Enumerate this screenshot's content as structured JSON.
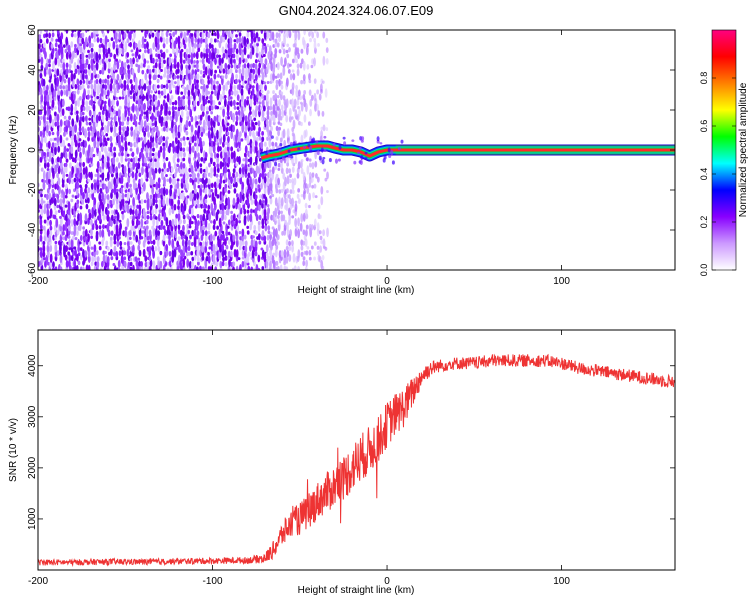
{
  "title": "GN04.2024.324.06.07.E09",
  "chart_data": [
    {
      "type": "heatmap",
      "xlabel": "Height of straight line (km)",
      "ylabel": "Frequency (Hz)",
      "xlim": [
        -200,
        165
      ],
      "ylim": [
        -60,
        60
      ],
      "xticks": [
        -200,
        -100,
        0,
        100
      ],
      "yticks": [
        -60,
        -40,
        -20,
        0,
        20,
        40,
        60
      ],
      "colorbar": {
        "label": "Normalized spectral amplitude",
        "range": [
          0,
          1
        ],
        "ticks": [
          0.0,
          0.2,
          0.4,
          0.6,
          0.8
        ],
        "colors": [
          "#ffffff",
          "#cc99ff",
          "#8800ff",
          "#0000ff",
          "#00ffff",
          "#00ff00",
          "#ffff00",
          "#ff8000",
          "#ff0000",
          "#ff0080"
        ]
      },
      "noise_region": [
        -200,
        -70
      ],
      "fading_region": [
        -70,
        -35
      ],
      "signal_trace": {
        "x": [
          -72,
          -68,
          -62,
          -55,
          -48,
          -40,
          -34,
          -30,
          -25,
          -20,
          -15,
          -10,
          -5,
          0,
          5,
          165
        ],
        "y": [
          -4,
          -3,
          -2,
          0,
          1,
          2,
          2,
          1,
          0,
          0,
          -1,
          -3,
          -1,
          0,
          0,
          0
        ]
      }
    },
    {
      "type": "line",
      "xlabel": "Height of straight line (km)",
      "ylabel": "SNR (10 * v/v)",
      "xlim": [
        -200,
        165
      ],
      "ylim": [
        0,
        4700
      ],
      "xticks": [
        -200,
        -100,
        0,
        100
      ],
      "yticks": [
        1000,
        2000,
        3000,
        4000
      ],
      "grid": false,
      "color": "#ee3333",
      "series": [
        {
          "x": [
            -200,
            -180,
            -160,
            -140,
            -120,
            -100,
            -80,
            -70,
            -65,
            -60,
            -55,
            -50,
            -45,
            -40,
            -35,
            -30,
            -25,
            -20,
            -15,
            -10,
            -5,
            0,
            5,
            10,
            15,
            20,
            25,
            30,
            40,
            50,
            60,
            70,
            80,
            90,
            100,
            110,
            120,
            130,
            140,
            150,
            160,
            165
          ],
          "values": [
            150,
            150,
            160,
            160,
            170,
            180,
            190,
            230,
            400,
            700,
            900,
            1000,
            1150,
            1350,
            1500,
            1650,
            1800,
            2000,
            2200,
            2350,
            2550,
            2850,
            3050,
            3200,
            3500,
            3800,
            3950,
            4000,
            4050,
            4050,
            4100,
            4100,
            4100,
            4100,
            4050,
            3950,
            3900,
            3850,
            3800,
            3750,
            3700,
            3700
          ],
          "spread": [
            120,
            120,
            120,
            120,
            120,
            120,
            130,
            200,
            350,
            500,
            550,
            650,
            700,
            750,
            800,
            850,
            900,
            950,
            950,
            950,
            900,
            900,
            850,
            800,
            600,
            400,
            300,
            250,
            250,
            250,
            250,
            250,
            250,
            250,
            250,
            250,
            250,
            250,
            250,
            250,
            250,
            250
          ]
        }
      ]
    }
  ]
}
